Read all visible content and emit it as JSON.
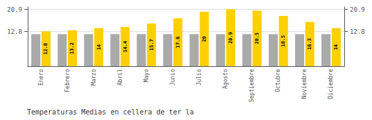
{
  "chart_data": {
    "type": "bar",
    "title": "Temperaturas Medias en cellera de ter la",
    "categories": [
      "Enero",
      "Febrero",
      "Marzo",
      "Abril",
      "Mayo",
      "Junio",
      "Julio",
      "Agosto",
      "Septiembre",
      "Octubre",
      "Noviembre",
      "Diciembre"
    ],
    "series": [
      {
        "color": "#AAAAAA",
        "values": [
          11.8,
          11.8,
          11.8,
          11.8,
          11.8,
          11.8,
          11.8,
          11.8,
          11.8,
          11.8,
          11.8,
          11.8
        ]
      },
      {
        "color": "#FFD000",
        "data_labels": true,
        "values": [
          12.8,
          13.2,
          14.0,
          14.4,
          15.7,
          17.6,
          20.0,
          20.9,
          20.5,
          18.5,
          16.3,
          14.0
        ]
      }
    ],
    "ylim": [
      0,
      21.8
    ],
    "yticks": [
      12.8,
      20.9
    ],
    "y2lim": [
      0,
      21.8
    ],
    "y2ticks": [
      12.8,
      20.9
    ],
    "grid": true
  }
}
